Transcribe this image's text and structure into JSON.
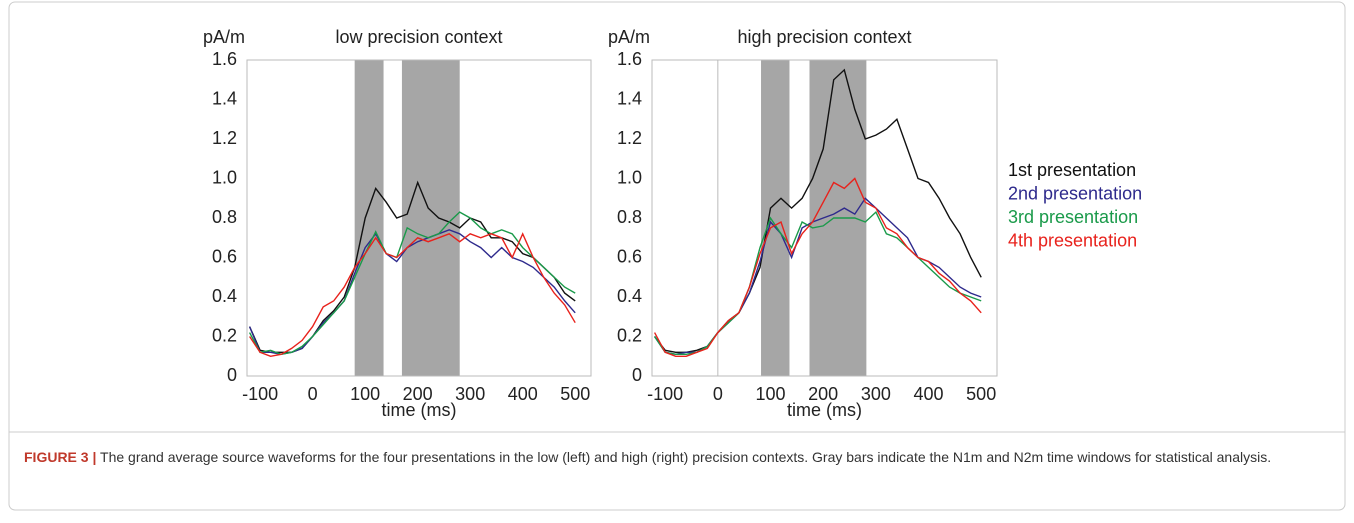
{
  "chart_data": [
    {
      "type": "line",
      "title": "low precision context",
      "ylabel": "pA/m",
      "xlabel": "time (ms)",
      "xlim": [
        -125,
        530
      ],
      "ylim": [
        0,
        1.6
      ],
      "xticks": [
        -100,
        0,
        100,
        200,
        300,
        400,
        500
      ],
      "yticks": [
        0,
        0.2,
        0.4,
        0.6,
        0.8,
        {
          "value": 1,
          "label": "1.0"
        },
        1.2,
        1.4,
        1.6
      ],
      "windows": [
        [
          80,
          135
        ],
        [
          170,
          280
        ]
      ],
      "zero_line": false,
      "x": [
        -120,
        -100,
        -80,
        -60,
        -40,
        -20,
        0,
        20,
        40,
        60,
        80,
        100,
        120,
        140,
        160,
        180,
        200,
        220,
        240,
        260,
        280,
        300,
        320,
        340,
        360,
        380,
        400,
        420,
        440,
        460,
        480,
        500
      ],
      "series": [
        {
          "color": "#111111",
          "values": [
            0.25,
            0.13,
            0.12,
            0.12,
            0.12,
            0.14,
            0.2,
            0.28,
            0.33,
            0.4,
            0.55,
            0.8,
            0.95,
            0.88,
            0.8,
            0.82,
            0.98,
            0.85,
            0.8,
            0.78,
            0.75,
            0.8,
            0.78,
            0.7,
            0.7,
            0.68,
            0.62,
            0.6,
            0.55,
            0.5,
            0.42,
            0.38
          ]
        },
        {
          "color": "#2e2a8c",
          "values": [
            0.25,
            0.12,
            0.12,
            0.11,
            0.12,
            0.14,
            0.2,
            0.27,
            0.32,
            0.38,
            0.52,
            0.65,
            0.72,
            0.62,
            0.58,
            0.65,
            0.68,
            0.7,
            0.72,
            0.74,
            0.72,
            0.68,
            0.65,
            0.6,
            0.65,
            0.6,
            0.58,
            0.55,
            0.5,
            0.45,
            0.38,
            0.32
          ]
        },
        {
          "color": "#1a9a4a",
          "values": [
            0.22,
            0.12,
            0.13,
            0.11,
            0.12,
            0.15,
            0.2,
            0.26,
            0.32,
            0.38,
            0.5,
            0.62,
            0.73,
            0.62,
            0.6,
            0.75,
            0.72,
            0.7,
            0.72,
            0.78,
            0.83,
            0.8,
            0.75,
            0.72,
            0.74,
            0.72,
            0.65,
            0.6,
            0.55,
            0.5,
            0.45,
            0.42
          ]
        },
        {
          "color": "#e8221c",
          "values": [
            0.2,
            0.12,
            0.1,
            0.11,
            0.14,
            0.18,
            0.25,
            0.35,
            0.38,
            0.45,
            0.55,
            0.62,
            0.7,
            0.62,
            0.6,
            0.65,
            0.7,
            0.68,
            0.7,
            0.72,
            0.68,
            0.72,
            0.7,
            0.72,
            0.7,
            0.6,
            0.72,
            0.6,
            0.5,
            0.42,
            0.36,
            0.27
          ]
        }
      ]
    },
    {
      "type": "line",
      "title": "high precision context",
      "ylabel": "pA/m",
      "xlabel": "time (ms)",
      "xlim": [
        -125,
        530
      ],
      "ylim": [
        0,
        1.6
      ],
      "xticks": [
        -100,
        0,
        100,
        200,
        300,
        400,
        500
      ],
      "yticks": [
        0,
        0.2,
        0.4,
        0.6,
        0.8,
        {
          "value": 1,
          "label": "1.0"
        },
        1.2,
        1.4,
        1.6
      ],
      "windows": [
        [
          82,
          136
        ],
        [
          174,
          282
        ]
      ],
      "zero_line": true,
      "legend": "right",
      "x": [
        -120,
        -100,
        -80,
        -60,
        -40,
        -20,
        0,
        20,
        40,
        60,
        80,
        100,
        120,
        140,
        160,
        180,
        200,
        220,
        240,
        260,
        280,
        300,
        320,
        340,
        360,
        380,
        400,
        420,
        440,
        460,
        480,
        500
      ],
      "series": [
        {
          "name": "1st presentation",
          "color": "#111111",
          "values": [
            0.2,
            0.13,
            0.12,
            0.12,
            0.13,
            0.15,
            0.22,
            0.28,
            0.32,
            0.42,
            0.55,
            0.85,
            0.9,
            0.85,
            0.9,
            1.0,
            1.15,
            1.5,
            1.55,
            1.35,
            1.2,
            1.22,
            1.25,
            1.3,
            1.15,
            1.0,
            0.98,
            0.9,
            0.8,
            0.72,
            0.6,
            0.5
          ]
        },
        {
          "name": "2nd presentation",
          "color": "#2e2a8c",
          "values": [
            0.2,
            0.12,
            0.11,
            0.12,
            0.12,
            0.15,
            0.22,
            0.27,
            0.32,
            0.42,
            0.58,
            0.78,
            0.72,
            0.6,
            0.75,
            0.78,
            0.8,
            0.82,
            0.85,
            0.82,
            0.9,
            0.85,
            0.8,
            0.75,
            0.7,
            0.6,
            0.58,
            0.55,
            0.5,
            0.45,
            0.42,
            0.4
          ]
        },
        {
          "name": "3rd presentation",
          "color": "#1a9a4a",
          "values": [
            0.2,
            0.12,
            0.11,
            0.11,
            0.12,
            0.15,
            0.22,
            0.27,
            0.32,
            0.45,
            0.65,
            0.8,
            0.72,
            0.65,
            0.78,
            0.75,
            0.76,
            0.8,
            0.8,
            0.8,
            0.78,
            0.83,
            0.72,
            0.7,
            0.65,
            0.6,
            0.55,
            0.5,
            0.45,
            0.42,
            0.4,
            0.38
          ]
        },
        {
          "name": "4th presentation",
          "color": "#e8221c",
          "values": [
            0.22,
            0.12,
            0.1,
            0.1,
            0.12,
            0.14,
            0.22,
            0.28,
            0.32,
            0.45,
            0.62,
            0.75,
            0.78,
            0.62,
            0.72,
            0.78,
            0.88,
            0.98,
            0.95,
            1.0,
            0.88,
            0.85,
            0.75,
            0.72,
            0.65,
            0.6,
            0.58,
            0.52,
            0.48,
            0.42,
            0.38,
            0.32
          ]
        }
      ]
    }
  ],
  "caption": {
    "label": "FIGURE 3 |",
    "text": "The grand average source waveforms for the four presentations in the low (left) and high (right) precision contexts. Gray bars indicate the N1m and N2m time windows for statistical analysis."
  }
}
